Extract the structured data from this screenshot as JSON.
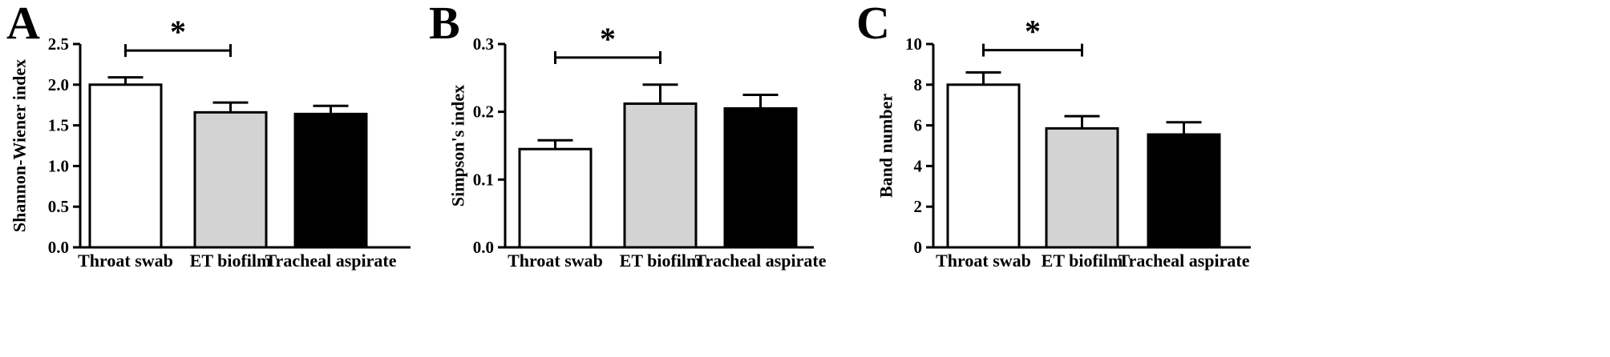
{
  "chart_data": [
    {
      "type": "bar",
      "panel_label": "A",
      "categories": [
        "Throat swab",
        "ET biofilm",
        "Tracheal aspirate"
      ],
      "values": [
        2.0,
        1.66,
        1.64
      ],
      "errors": [
        0.09,
        0.12,
        0.1
      ],
      "colors": [
        "#ffffff",
        "#d3d3d3",
        "#000000"
      ],
      "ylabel": "Shannon-Wiener index",
      "ylim": [
        0,
        2.5
      ],
      "yticks": [
        0.0,
        0.5,
        1.0,
        1.5,
        2.0,
        2.5
      ],
      "ytick_labels": [
        "0.0",
        "0.5",
        "1.0",
        "1.5",
        "2.0",
        "2.5"
      ],
      "significance": {
        "between": [
          0,
          1
        ],
        "y": 2.42,
        "label": "*"
      }
    },
    {
      "type": "bar",
      "panel_label": "B",
      "categories": [
        "Throat swab",
        "ET biofilm",
        "Tracheal aspirate"
      ],
      "values": [
        0.145,
        0.212,
        0.205
      ],
      "errors": [
        0.013,
        0.028,
        0.02
      ],
      "colors": [
        "#ffffff",
        "#d3d3d3",
        "#000000"
      ],
      "ylabel": "Simpson's index",
      "ylim": [
        0,
        0.3
      ],
      "yticks": [
        0.0,
        0.1,
        0.2,
        0.3
      ],
      "ytick_labels": [
        "0.0",
        "0.1",
        "0.2",
        "0.3"
      ],
      "significance": {
        "between": [
          0,
          1
        ],
        "y": 0.28,
        "label": "*"
      }
    },
    {
      "type": "bar",
      "panel_label": "C",
      "categories": [
        "Throat swab",
        "ET biofilm",
        "Tracheal aspirate"
      ],
      "values": [
        8.0,
        5.85,
        5.55
      ],
      "errors": [
        0.6,
        0.6,
        0.6
      ],
      "colors": [
        "#ffffff",
        "#d3d3d3",
        "#000000"
      ],
      "ylabel": "Band number",
      "ylim": [
        0,
        10
      ],
      "yticks": [
        0,
        2,
        4,
        6,
        8,
        10
      ],
      "ytick_labels": [
        "0",
        "2",
        "4",
        "6",
        "8",
        "10"
      ],
      "significance": {
        "between": [
          0,
          1
        ],
        "y": 9.7,
        "label": "*"
      }
    }
  ]
}
